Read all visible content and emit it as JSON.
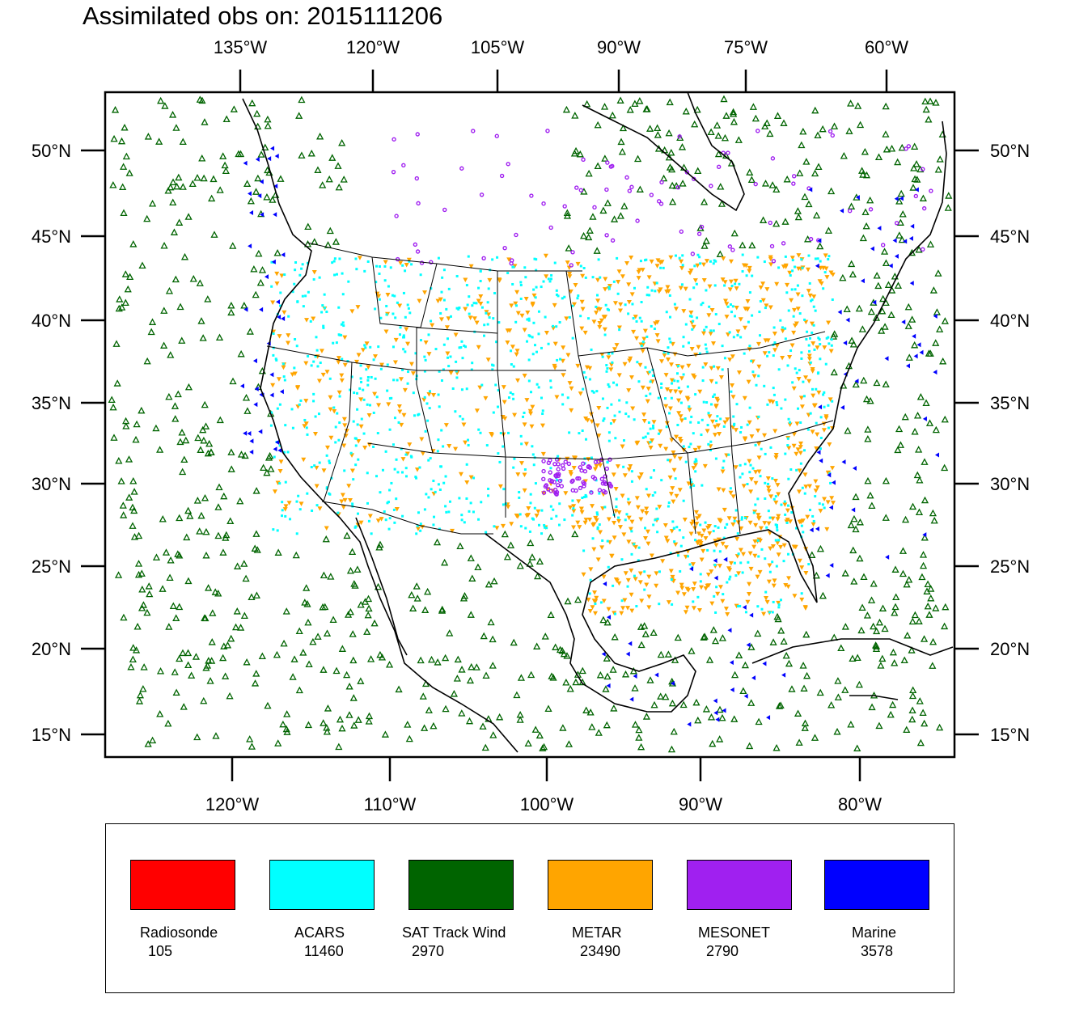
{
  "title": "Assimilated obs on: 2015111206",
  "colors": {
    "ocean_obs": "#006400",
    "land": "#ffffff",
    "coast": "#000000"
  },
  "axes": {
    "top_lon_ticks": [
      "135°W",
      "120°W",
      "105°W",
      "90°W",
      "75°W",
      "60°W"
    ],
    "bottom_lon_ticks": [
      "120°W",
      "110°W",
      "100°W",
      "90°W",
      "80°W"
    ],
    "lat_ticks": [
      "50°N",
      "45°N",
      "40°N",
      "35°N",
      "30°N",
      "25°N",
      "20°N",
      "15°N"
    ]
  },
  "legend": [
    {
      "name": "Radiosonde",
      "count": "105",
      "color": "#ff0000"
    },
    {
      "name": "ACARS",
      "count": "11460",
      "color": "#00ffff"
    },
    {
      "name": "SAT Track Wind",
      "count": "2970",
      "color": "#006400"
    },
    {
      "name": "METAR",
      "count": "23490",
      "color": "#ffa500"
    },
    {
      "name": "MESONET",
      "count": "2790",
      "color": "#a020f0"
    },
    {
      "name": "Marine",
      "count": "3578",
      "color": "#0000ff"
    }
  ]
}
